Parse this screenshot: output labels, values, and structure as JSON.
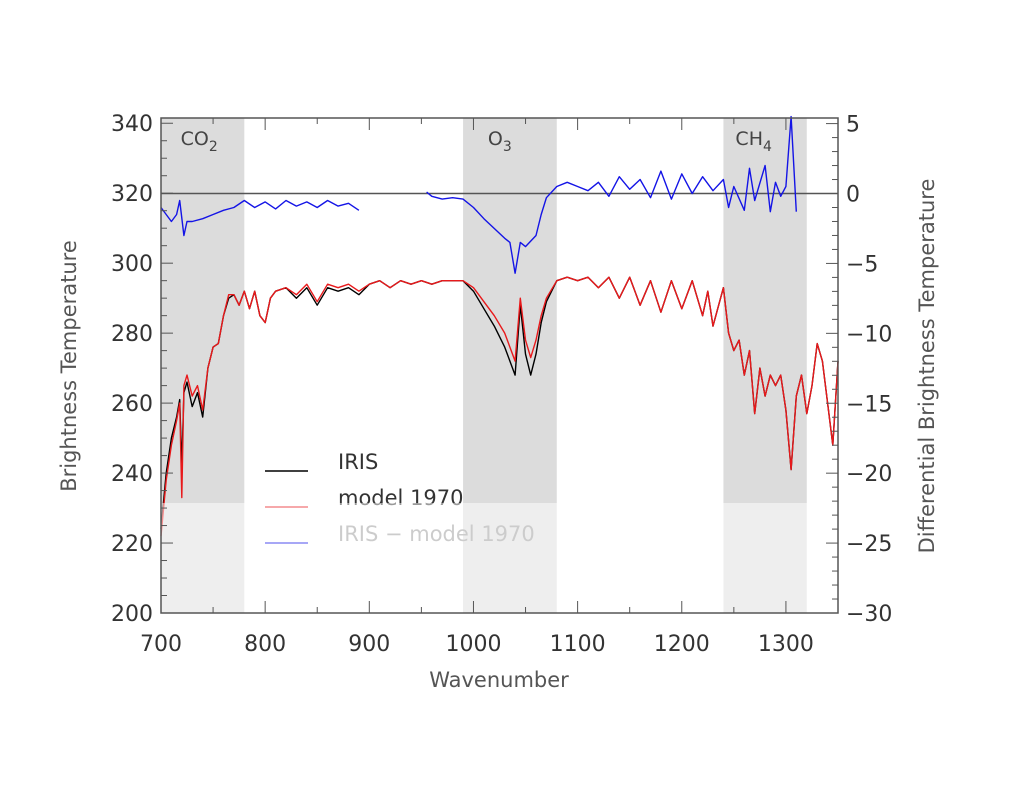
{
  "chart_data": {
    "type": "line",
    "xlabel": "Wavenumber",
    "ylabel": "Brightness Temperature",
    "y2label": "Differential Brightness Temperature",
    "xlim": [
      700,
      1350
    ],
    "ylim": [
      200,
      341.5
    ],
    "y2lim": [
      -30,
      5.4
    ],
    "xticks": [
      700,
      800,
      900,
      1000,
      1100,
      1200,
      1300
    ],
    "yticks": [
      200,
      220,
      240,
      260,
      280,
      300,
      320,
      340
    ],
    "y2ticks": [
      -30,
      -25,
      -20,
      -15,
      -10,
      -5,
      0,
      5
    ],
    "bands": [
      {
        "label": "CO",
        "sub": "2",
        "range": [
          700,
          780
        ]
      },
      {
        "label": "O",
        "sub": "3",
        "range": [
          990,
          1080
        ]
      },
      {
        "label": "CH",
        "sub": "4",
        "range": [
          1240,
          1320
        ]
      }
    ],
    "zero_line_y2": 0,
    "legend": {
      "placement": "lower-left",
      "entries": [
        "IRIS",
        "model 1970",
        "IRIS − model 1970"
      ]
    },
    "series": [
      {
        "name": "IRIS",
        "color": "#000000",
        "axis": "left",
        "x": [
          700,
          705,
          710,
          715,
          718,
          720,
          722,
          725,
          730,
          735,
          740,
          745,
          750,
          755,
          760,
          765,
          770,
          775,
          780,
          785,
          790,
          795,
          800,
          805,
          810,
          820,
          830,
          840,
          850,
          860,
          870,
          880,
          890,
          900,
          910,
          920,
          930,
          940,
          950,
          960,
          970,
          980,
          990,
          1000,
          1010,
          1020,
          1030,
          1035,
          1040,
          1045,
          1050,
          1055,
          1060,
          1065,
          1070,
          1080,
          1090,
          1100,
          1110,
          1120,
          1130,
          1140,
          1150,
          1160,
          1170,
          1180,
          1190,
          1200,
          1210,
          1220,
          1225,
          1230,
          1240,
          1245,
          1250,
          1255,
          1260,
          1265,
          1270,
          1275,
          1280,
          1285,
          1290,
          1295,
          1300,
          1305,
          1310,
          1315,
          1320,
          1325,
          1330,
          1335,
          1340,
          1345,
          1350
        ],
        "y": [
          224,
          240,
          250,
          256,
          261,
          242,
          263,
          266,
          259,
          263,
          256,
          270,
          276,
          277,
          285,
          290,
          291,
          288,
          292,
          287,
          292,
          285,
          283,
          290,
          292,
          293,
          290,
          293,
          288,
          293,
          292,
          293,
          291,
          294,
          295,
          293,
          295,
          294,
          295,
          294,
          295,
          295,
          295,
          292,
          287,
          282,
          276,
          272,
          268,
          288,
          274,
          268,
          274,
          283,
          289,
          295,
          296,
          295,
          296,
          293,
          296,
          290,
          296,
          288,
          295,
          286,
          295,
          287,
          295,
          285,
          292,
          282,
          293,
          280,
          275,
          278,
          268,
          275,
          257,
          270,
          262,
          268,
          265,
          268,
          258,
          241,
          262,
          268,
          257,
          265,
          277,
          272,
          260,
          248,
          272
        ]
      },
      {
        "name": "model 1970",
        "color": "#e8191b",
        "axis": "left",
        "x": [
          700,
          705,
          710,
          715,
          718,
          720,
          722,
          725,
          730,
          735,
          740,
          745,
          750,
          755,
          760,
          765,
          770,
          775,
          780,
          785,
          790,
          795,
          800,
          805,
          810,
          820,
          830,
          840,
          850,
          860,
          870,
          880,
          890,
          900,
          910,
          920,
          930,
          940,
          950,
          960,
          970,
          980,
          990,
          1000,
          1010,
          1020,
          1030,
          1035,
          1040,
          1045,
          1050,
          1055,
          1060,
          1065,
          1070,
          1080,
          1090,
          1100,
          1110,
          1120,
          1130,
          1140,
          1150,
          1160,
          1170,
          1180,
          1190,
          1200,
          1210,
          1220,
          1225,
          1230,
          1240,
          1245,
          1250,
          1255,
          1260,
          1265,
          1270,
          1275,
          1280,
          1285,
          1290,
          1295,
          1300,
          1305,
          1310,
          1315,
          1320,
          1325,
          1330,
          1335,
          1340,
          1345,
          1350
        ],
        "y": [
          222,
          238,
          248,
          255,
          260,
          233,
          265,
          268,
          262,
          265,
          258,
          270,
          276,
          277,
          285,
          291,
          291,
          288,
          292,
          287,
          292,
          285,
          283,
          290,
          292,
          293,
          291,
          294,
          289,
          294,
          293,
          294,
          292,
          294,
          295,
          293,
          295,
          294,
          295,
          294,
          295,
          295,
          295,
          293,
          289,
          285,
          280,
          276,
          272,
          290,
          278,
          273,
          278,
          285,
          290,
          295,
          296,
          295,
          296,
          293,
          296,
          290,
          296,
          288,
          295,
          286,
          295,
          287,
          295,
          285,
          292,
          282,
          293,
          280,
          275,
          278,
          268,
          275,
          257,
          270,
          262,
          268,
          265,
          268,
          258,
          241,
          262,
          268,
          257,
          265,
          277,
          272,
          260,
          248,
          272
        ]
      },
      {
        "name": "IRIS − model 1970",
        "color": "#1414e6",
        "axis": "right",
        "segments": [
          {
            "x": [
              700,
              705,
              710,
              715,
              718,
              722,
              725,
              730,
              740,
              750,
              760,
              770,
              780,
              790,
              800,
              810,
              820,
              830,
              840,
              850,
              860,
              870,
              880,
              890
            ],
            "y": [
              -1,
              -1.5,
              -2,
              -1.5,
              -0.5,
              -3,
              -2,
              -2,
              -1.8,
              -1.5,
              -1.2,
              -1,
              -0.5,
              -1,
              -0.6,
              -1.1,
              -0.5,
              -0.9,
              -0.6,
              -1,
              -0.5,
              -0.9,
              -0.7,
              -1.2
            ]
          },
          {
            "x": [
              955,
              960,
              970,
              980,
              990,
              1000,
              1010,
              1020,
              1030,
              1035,
              1040,
              1045,
              1050,
              1060,
              1065,
              1070,
              1080,
              1090,
              1100,
              1110,
              1120,
              1130,
              1140,
              1150,
              1160,
              1170,
              1180,
              1190,
              1200,
              1210,
              1220,
              1230,
              1240,
              1245,
              1250,
              1260,
              1265,
              1270,
              1280,
              1285,
              1290,
              1295,
              1300,
              1305,
              1310
            ],
            "y": [
              0.1,
              -0.2,
              -0.4,
              -0.3,
              -0.4,
              -1,
              -1.8,
              -2.5,
              -3.2,
              -3.5,
              -5.7,
              -3.5,
              -3.8,
              -3,
              -1.5,
              -0.3,
              0.5,
              0.8,
              0.5,
              0.2,
              0.8,
              -0.2,
              1.2,
              0.3,
              1,
              -0.3,
              1.6,
              -0.4,
              1.4,
              0,
              1.2,
              0.2,
              1,
              -1,
              0.5,
              -1.2,
              1.8,
              -0.5,
              2,
              -1.3,
              0.8,
              -0.2,
              0.5,
              5.5,
              -1.3
            ]
          }
        ]
      }
    ]
  }
}
